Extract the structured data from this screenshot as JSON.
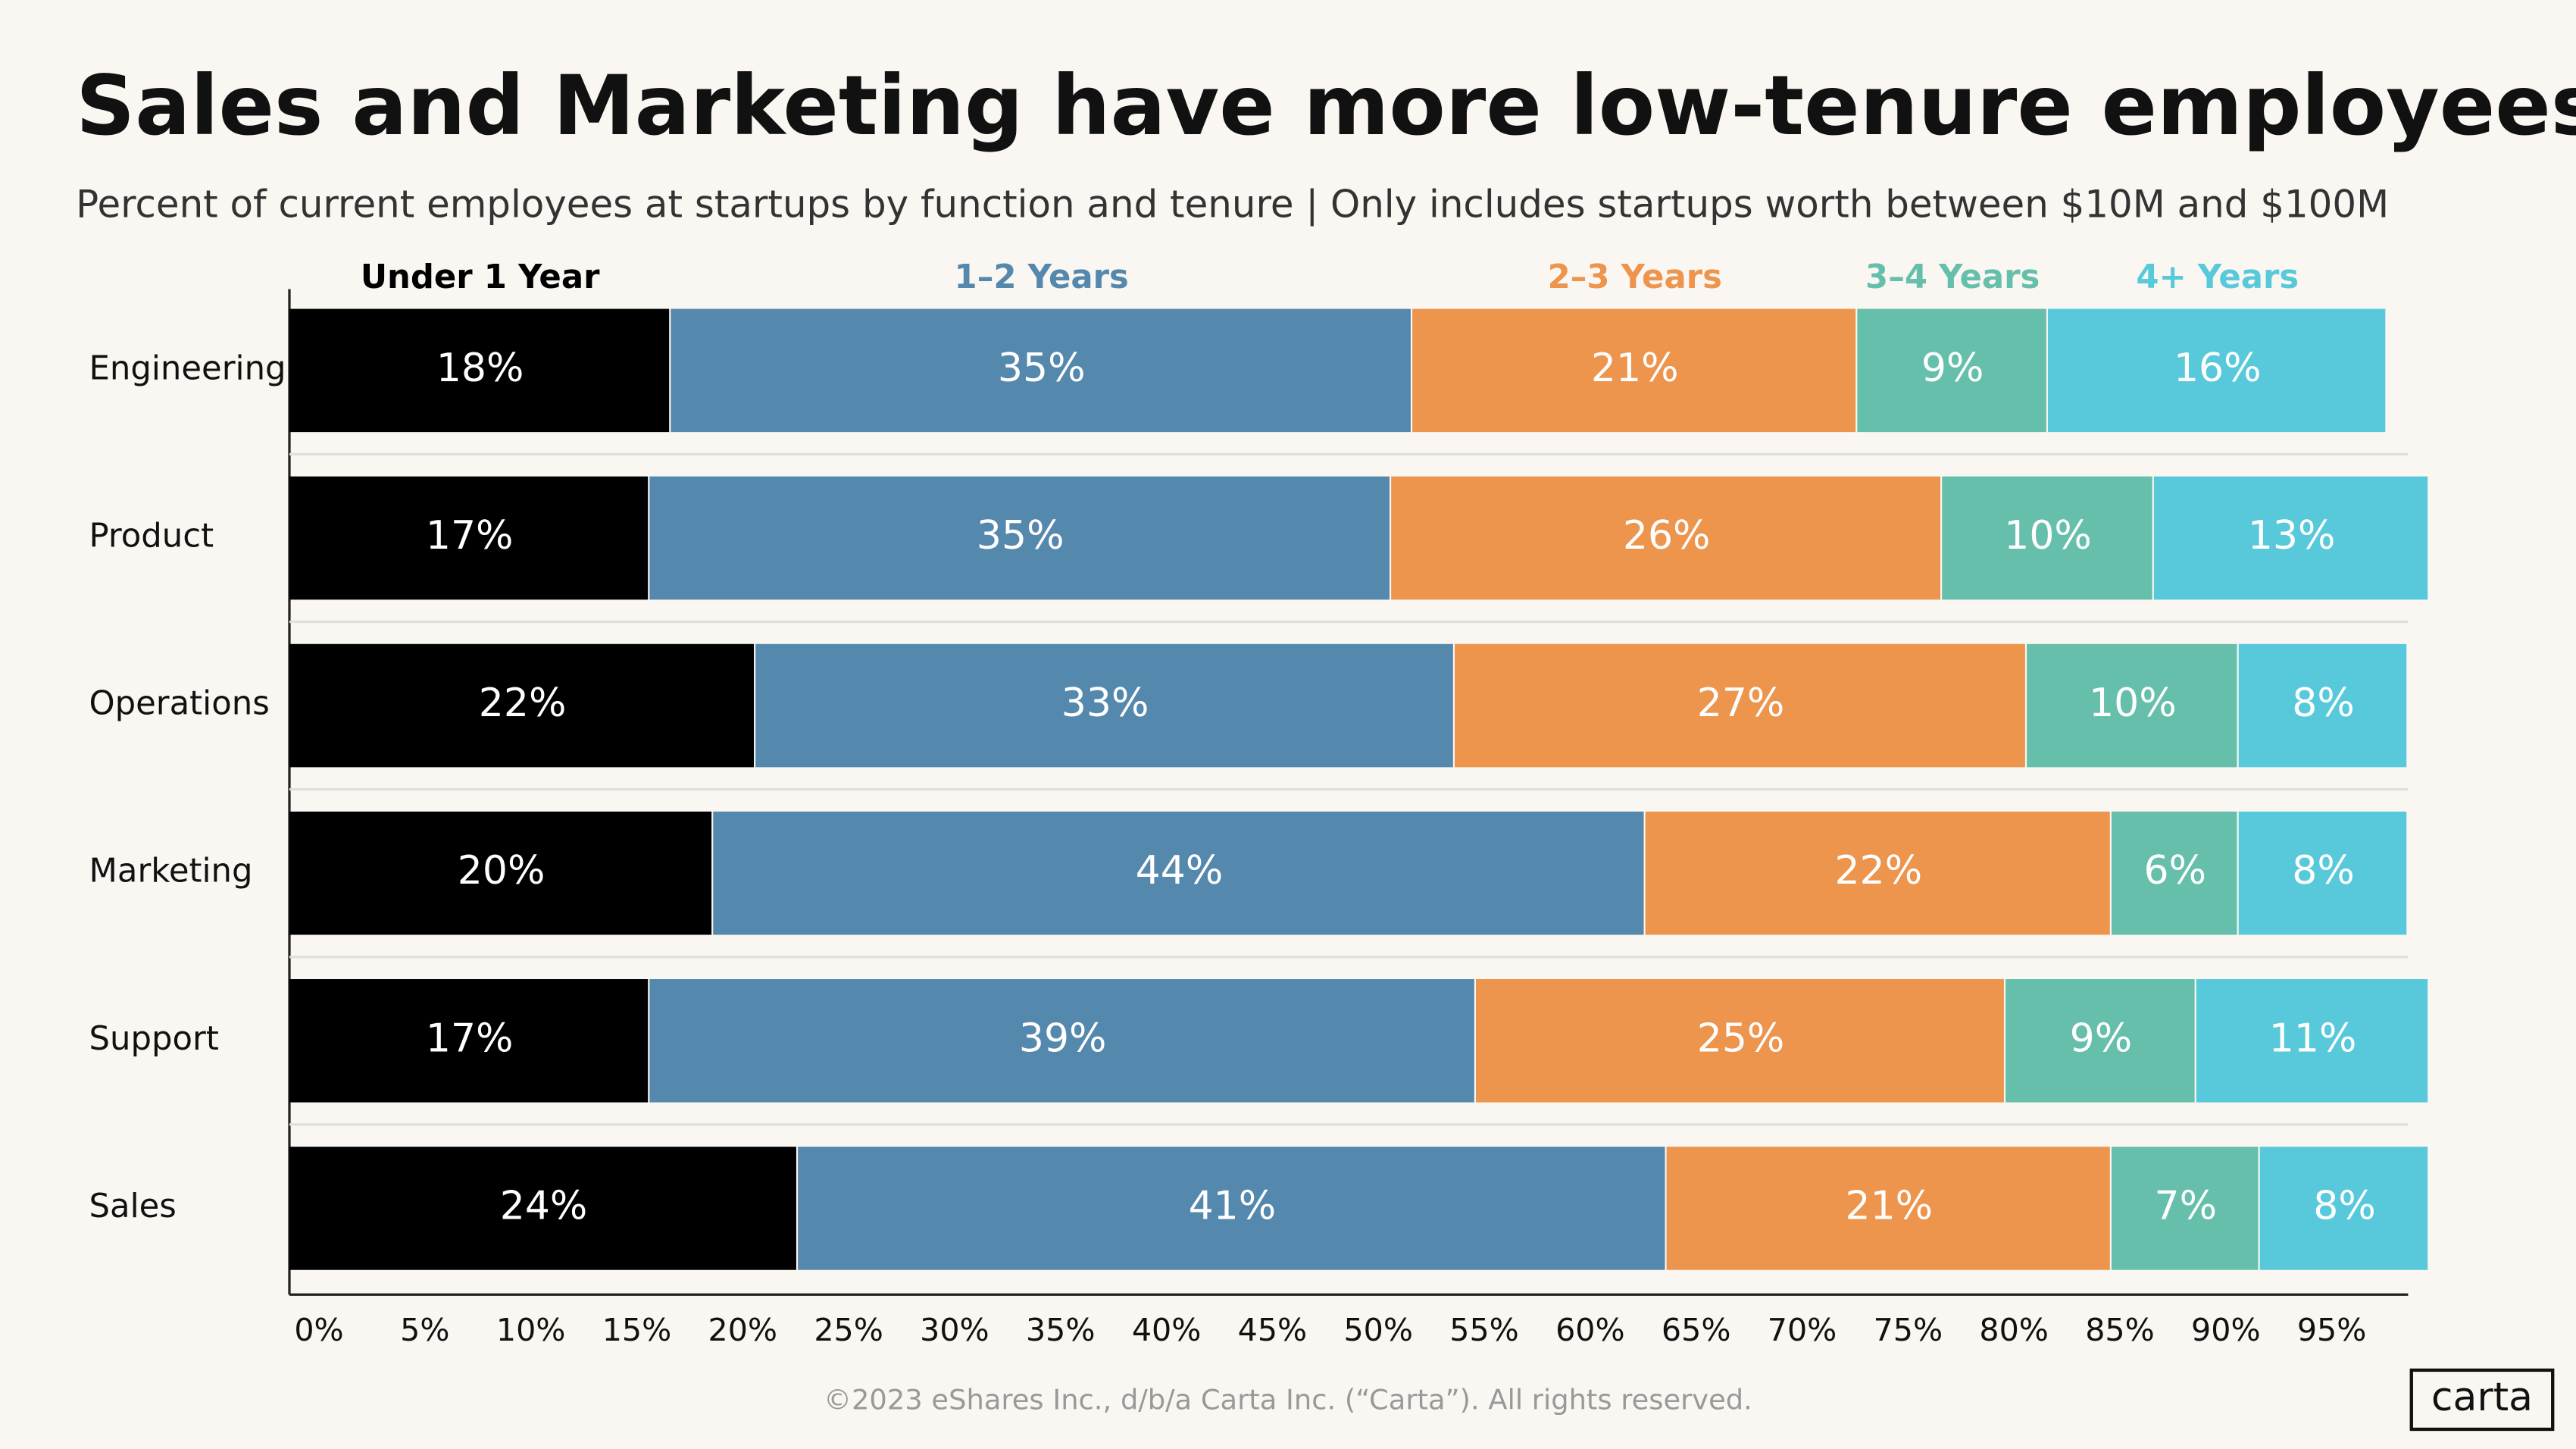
{
  "chart_data": {
    "type": "stacked-bar-horizontal",
    "title": "Sales and Marketing have more low-tenure employees",
    "subtitle": "Percent of current employees at startups by function and tenure | Only includes startups worth between $10M and $100M",
    "categories": [
      "Engineering",
      "Product",
      "Operations",
      "Marketing",
      "Support",
      "Sales"
    ],
    "series": [
      {
        "name": "Under 1 Year",
        "color": "#000000",
        "values": [
          18,
          17,
          22,
          20,
          17,
          24
        ],
        "value_labels": [
          "18%",
          "17%",
          "22%",
          "20%",
          "17%",
          "24%"
        ]
      },
      {
        "name": "1–2 Years",
        "color": "#5588ad",
        "values": [
          35,
          35,
          33,
          44,
          39,
          41
        ],
        "value_labels": [
          "35%",
          "35%",
          "33%",
          "44%",
          "39%",
          "41%"
        ]
      },
      {
        "name": "2–3 Years",
        "color": "#ed944d",
        "values": [
          21,
          26,
          27,
          22,
          25,
          21
        ],
        "value_labels": [
          "21%",
          "26%",
          "27%",
          "22%",
          "25%",
          "21%"
        ]
      },
      {
        "name": "3–4 Years",
        "color": "#66bfab",
        "values": [
          9,
          10,
          10,
          6,
          9,
          7
        ],
        "value_labels": [
          "9%",
          "10%",
          "10%",
          "6%",
          "9%",
          "7%"
        ]
      },
      {
        "name": "4+ Years",
        "color": "#58c9db",
        "values": [
          16,
          13,
          8,
          8,
          11,
          8
        ],
        "value_labels": [
          "16%",
          "13%",
          "8%",
          "8%",
          "11%",
          "8%"
        ]
      }
    ],
    "xlim": [
      0,
      100
    ],
    "xticks": [
      {
        "value": 0,
        "label": "0%"
      },
      {
        "value": 5,
        "label": "5%"
      },
      {
        "value": 10,
        "label": "10%"
      },
      {
        "value": 15,
        "label": "15%"
      },
      {
        "value": 20,
        "label": "20%"
      },
      {
        "value": 25,
        "label": "25%"
      },
      {
        "value": 30,
        "label": "30%"
      },
      {
        "value": 35,
        "label": "35%"
      },
      {
        "value": 40,
        "label": "40%"
      },
      {
        "value": 45,
        "label": "45%"
      },
      {
        "value": 50,
        "label": "50%"
      },
      {
        "value": 55,
        "label": "55%"
      },
      {
        "value": 60,
        "label": "60%"
      },
      {
        "value": 65,
        "label": "65%"
      },
      {
        "value": 70,
        "label": "70%"
      },
      {
        "value": 75,
        "label": "75%"
      },
      {
        "value": 80,
        "label": "80%"
      },
      {
        "value": 85,
        "label": "85%"
      },
      {
        "value": 90,
        "label": "90%"
      },
      {
        "value": 95,
        "label": "95%"
      }
    ],
    "footer": "©2023 eShares Inc., d/b/a Carta Inc. (“Carta”). All rights reserved.",
    "brand": "carta"
  }
}
